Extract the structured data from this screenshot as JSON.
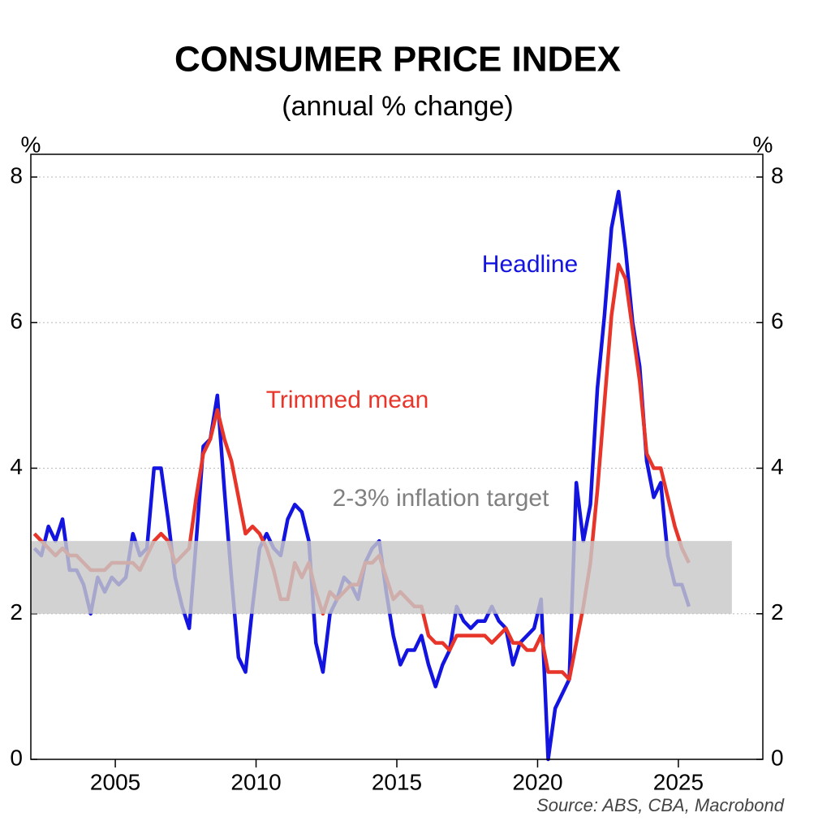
{
  "chart_data": {
    "type": "line",
    "title": "CONSUMER PRICE INDEX",
    "subtitle": "(annual % change)",
    "y_unit": "%",
    "y2_unit": "%",
    "source": "Source: ABS, CBA, Macrobond",
    "x": [
      2002.125,
      2002.375,
      2002.625,
      2002.875,
      2003.125,
      2003.375,
      2003.625,
      2003.875,
      2004.125,
      2004.375,
      2004.625,
      2004.875,
      2005.125,
      2005.375,
      2005.625,
      2005.875,
      2006.125,
      2006.375,
      2006.625,
      2006.875,
      2007.125,
      2007.375,
      2007.625,
      2007.875,
      2008.125,
      2008.375,
      2008.625,
      2008.875,
      2009.125,
      2009.375,
      2009.625,
      2009.875,
      2010.125,
      2010.375,
      2010.625,
      2010.875,
      2011.125,
      2011.375,
      2011.625,
      2011.875,
      2012.125,
      2012.375,
      2012.625,
      2012.875,
      2013.125,
      2013.375,
      2013.625,
      2013.875,
      2014.125,
      2014.375,
      2014.625,
      2014.875,
      2015.125,
      2015.375,
      2015.625,
      2015.875,
      2016.125,
      2016.375,
      2016.625,
      2016.875,
      2017.125,
      2017.375,
      2017.625,
      2017.875,
      2018.125,
      2018.375,
      2018.625,
      2018.875,
      2019.125,
      2019.375,
      2019.625,
      2019.875,
      2020.125,
      2020.375,
      2020.625,
      2020.875,
      2021.125,
      2021.375,
      2021.625,
      2021.875,
      2022.125,
      2022.375,
      2022.625,
      2022.875,
      2023.125,
      2023.375,
      2023.625,
      2023.875,
      2024.125,
      2024.375,
      2024.625,
      2024.875,
      2025.125,
      2025.375
    ],
    "series": [
      {
        "name": "Headline",
        "color": "#1414e0",
        "values": [
          2.9,
          2.8,
          3.2,
          3.0,
          3.3,
          2.6,
          2.6,
          2.4,
          2.0,
          2.5,
          2.3,
          2.5,
          2.4,
          2.5,
          3.1,
          2.8,
          2.9,
          4.0,
          4.0,
          3.3,
          2.5,
          2.1,
          1.8,
          3.0,
          4.3,
          4.4,
          5.0,
          3.7,
          2.5,
          1.4,
          1.2,
          2.1,
          2.9,
          3.1,
          2.9,
          2.8,
          3.3,
          3.5,
          3.4,
          3.0,
          1.6,
          1.2,
          2.0,
          2.2,
          2.5,
          2.4,
          2.2,
          2.7,
          2.9,
          3.0,
          2.3,
          1.7,
          1.3,
          1.5,
          1.5,
          1.7,
          1.3,
          1.0,
          1.3,
          1.5,
          2.1,
          1.9,
          1.8,
          1.9,
          1.9,
          2.1,
          1.9,
          1.8,
          1.3,
          1.6,
          1.7,
          1.8,
          2.2,
          0.0,
          0.7,
          0.9,
          1.1,
          3.8,
          3.0,
          3.5,
          5.1,
          6.1,
          7.3,
          7.8,
          7.0,
          6.0,
          5.4,
          4.1,
          3.6,
          3.8,
          2.8,
          2.4,
          2.4,
          2.1
        ]
      },
      {
        "name": "Trimmed mean",
        "color": "#e8352a",
        "values": [
          3.1,
          3.0,
          2.9,
          2.8,
          2.9,
          2.8,
          2.8,
          2.7,
          2.6,
          2.6,
          2.6,
          2.7,
          2.7,
          2.7,
          2.7,
          2.6,
          2.8,
          3.0,
          3.1,
          3.0,
          2.7,
          2.8,
          2.9,
          3.6,
          4.2,
          4.4,
          4.8,
          4.4,
          4.1,
          3.6,
          3.1,
          3.2,
          3.1,
          2.9,
          2.6,
          2.2,
          2.2,
          2.7,
          2.5,
          2.7,
          2.3,
          2.0,
          2.3,
          2.2,
          2.3,
          2.4,
          2.4,
          2.7,
          2.7,
          2.8,
          2.5,
          2.2,
          2.3,
          2.2,
          2.1,
          2.1,
          1.7,
          1.6,
          1.6,
          1.5,
          1.7,
          1.7,
          1.7,
          1.7,
          1.7,
          1.6,
          1.7,
          1.8,
          1.6,
          1.6,
          1.5,
          1.5,
          1.7,
          1.2,
          1.2,
          1.2,
          1.1,
          1.6,
          2.1,
          2.7,
          3.7,
          4.9,
          6.1,
          6.8,
          6.6,
          5.9,
          5.2,
          4.2,
          4.0,
          4.0,
          3.6,
          3.2,
          2.9,
          2.7
        ]
      }
    ],
    "target_band": {
      "label": "2-3% inflation target",
      "ymin": 2,
      "ymax": 3,
      "xmin": 2002,
      "xmax": 2026.9,
      "color": "#c8c8c8"
    },
    "xlim": [
      2002,
      2028
    ],
    "xticks": [
      2005,
      2010,
      2015,
      2020,
      2025
    ],
    "ylim": [
      0,
      8
    ],
    "yticks": [
      0,
      2,
      4,
      6,
      8
    ],
    "y2lim": [
      0,
      8
    ],
    "y2ticks": [
      0,
      2,
      4,
      6,
      8
    ],
    "grid": true
  }
}
